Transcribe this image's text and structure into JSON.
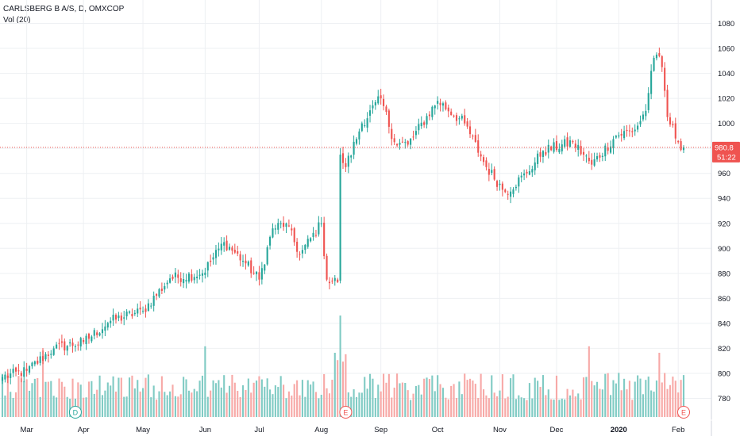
{
  "header": {
    "symbol": "CARLSBERG B A/S, D, OMXCOP",
    "indicator": "Vol (20)"
  },
  "colors": {
    "up": "#26a69a",
    "down": "#ef5350",
    "up_volume": "#80cbc4",
    "down_volume": "#f7a9a7",
    "grid": "#eef0f3",
    "price_line": "#ef5350"
  },
  "price_tag": {
    "price": "980.8",
    "countdown": "51:22"
  },
  "markers": [
    {
      "date": "2019-03-27",
      "letter": "D",
      "kind": "dividend"
    },
    {
      "date": "2019-08-14",
      "letter": "E",
      "kind": "earnings"
    },
    {
      "date": "2020-02-05",
      "letter": "E",
      "kind": "earnings"
    }
  ],
  "chart_data": {
    "type": "candlestick",
    "title": "CARLSBERG B A/S, D, OMXCOP",
    "y_axis": {
      "min": 768,
      "max": 1090,
      "ticks": [
        780,
        800,
        820,
        840,
        860,
        880,
        900,
        920,
        940,
        960,
        980,
        1000,
        1020,
        1040,
        1060,
        1080
      ],
      "side": "right"
    },
    "x_axis": {
      "ticks": [
        {
          "date": "2019-03-01",
          "label": "Mar",
          "bold": false
        },
        {
          "date": "2019-04-01",
          "label": "Apr",
          "bold": false
        },
        {
          "date": "2019-05-01",
          "label": "May",
          "bold": false
        },
        {
          "date": "2019-06-03",
          "label": "Jun",
          "bold": false
        },
        {
          "date": "2019-07-01",
          "label": "Jul",
          "bold": false
        },
        {
          "date": "2019-08-01",
          "label": "Aug",
          "bold": false
        },
        {
          "date": "2019-09-02",
          "label": "Sep",
          "bold": false
        },
        {
          "date": "2019-10-01",
          "label": "Oct",
          "bold": false
        },
        {
          "date": "2019-11-01",
          "label": "Nov",
          "bold": false
        },
        {
          "date": "2019-12-02",
          "label": "Dec",
          "bold": false
        },
        {
          "date": "2020-01-02",
          "label": "2020",
          "bold": true
        },
        {
          "date": "2020-02-03",
          "label": "Feb",
          "bold": false
        }
      ]
    },
    "grid": true,
    "last_price": 980.8,
    "close_waypoints": [
      {
        "date": "2019-02-18",
        "close": 797
      },
      {
        "date": "2019-03-01",
        "close": 802
      },
      {
        "date": "2019-03-15",
        "close": 820
      },
      {
        "date": "2019-04-01",
        "close": 825
      },
      {
        "date": "2019-04-15",
        "close": 842
      },
      {
        "date": "2019-05-01",
        "close": 850
      },
      {
        "date": "2019-05-15",
        "close": 876
      },
      {
        "date": "2019-06-01",
        "close": 880
      },
      {
        "date": "2019-06-12",
        "close": 905
      },
      {
        "date": "2019-06-24",
        "close": 888
      },
      {
        "date": "2019-07-01",
        "close": 875
      },
      {
        "date": "2019-07-08",
        "close": 916
      },
      {
        "date": "2019-07-15",
        "close": 920
      },
      {
        "date": "2019-07-22",
        "close": 895
      },
      {
        "date": "2019-08-01",
        "close": 920
      },
      {
        "date": "2019-08-05",
        "close": 875
      },
      {
        "date": "2019-08-09",
        "close": 873
      },
      {
        "date": "2019-08-12",
        "close": 975
      },
      {
        "date": "2019-08-14",
        "close": 965
      },
      {
        "date": "2019-08-22",
        "close": 1000
      },
      {
        "date": "2019-09-01",
        "close": 1020
      },
      {
        "date": "2019-09-09",
        "close": 985
      },
      {
        "date": "2019-09-16",
        "close": 983
      },
      {
        "date": "2019-10-01",
        "close": 1018
      },
      {
        "date": "2019-10-15",
        "close": 1000
      },
      {
        "date": "2019-10-25",
        "close": 965
      },
      {
        "date": "2019-11-05",
        "close": 945
      },
      {
        "date": "2019-11-15",
        "close": 960
      },
      {
        "date": "2019-11-25",
        "close": 978
      },
      {
        "date": "2019-12-10",
        "close": 985
      },
      {
        "date": "2019-12-19",
        "close": 967
      },
      {
        "date": "2020-01-01",
        "close": 990
      },
      {
        "date": "2020-01-10",
        "close": 995
      },
      {
        "date": "2020-01-16",
        "close": 1010
      },
      {
        "date": "2020-01-20",
        "close": 1042
      },
      {
        "date": "2020-01-22",
        "close": 1055
      },
      {
        "date": "2020-01-24",
        "close": 1045
      },
      {
        "date": "2020-01-28",
        "close": 1005
      },
      {
        "date": "2020-02-03",
        "close": 985
      },
      {
        "date": "2020-02-05",
        "close": 980.8
      }
    ],
    "volume": {
      "panel": "bottom overlay",
      "spike": {
        "date": "2019-08-12",
        "relative_height": 1.0
      },
      "typical_relative_height": 0.3
    }
  }
}
